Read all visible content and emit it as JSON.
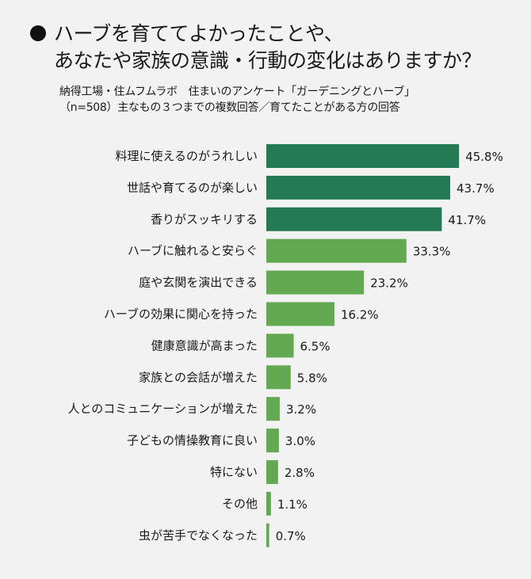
{
  "title": {
    "line1": "ハーブを育ててよかったことや、",
    "line2": "あなたや家族の意識・行動の変化はありますか？"
  },
  "subtitle": {
    "line1": "納得工場・住ムフムラボ　住まいのアンケート「ガーデニングとハーブ」",
    "line2": "（n=508）主なもの３つまでの複数回答／育てたことがある方の回答"
  },
  "chart_data": {
    "type": "bar",
    "orientation": "horizontal",
    "title": "ハーブを育ててよかったことや、あなたや家族の意識・行動の変化はありますか？",
    "categories": [
      "料理に使えるのがうれしい",
      "世話や育てるのが楽しい",
      "香りがスッキリする",
      "ハーブに触れると安らぐ",
      "庭や玄関を演出できる",
      "ハーブの効果に関心を持った",
      "健康意識が高まった",
      "家族との会話が増えた",
      "人とのコミュニケーションが増えた",
      "子どもの情操教育に良い",
      "特にない",
      "その他",
      "虫が苦手でなくなった"
    ],
    "values": [
      45.8,
      43.7,
      41.7,
      33.3,
      23.2,
      16.2,
      6.5,
      5.8,
      3.2,
      3.0,
      2.8,
      1.1,
      0.7
    ],
    "value_labels": [
      "45.8%",
      "43.7%",
      "41.7%",
      "33.3%",
      "23.2%",
      "16.2%",
      "6.5%",
      "5.8%",
      "3.2%",
      "3.0%",
      "2.8%",
      "1.1%",
      "0.7%"
    ],
    "unit": "%",
    "grid": false,
    "colors": {
      "top3": "#247a55",
      "rest": "#62a952"
    }
  }
}
